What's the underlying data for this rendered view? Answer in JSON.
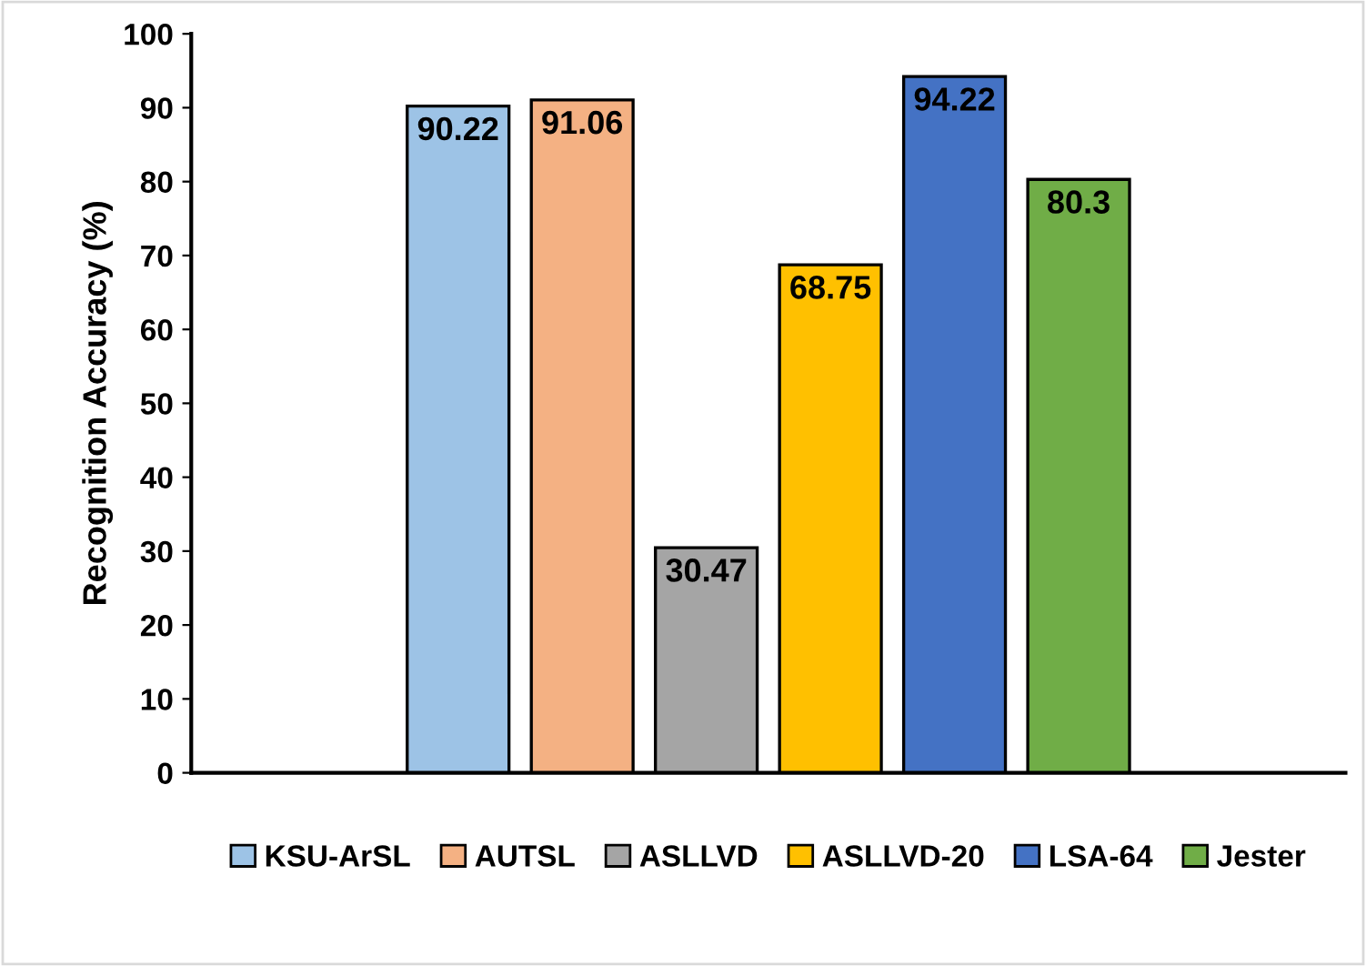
{
  "chart_data": {
    "type": "bar",
    "categories": [
      null
    ],
    "ylabel": "Recognition Accuracy (%)",
    "ylim": [
      0,
      100
    ],
    "yticks": [
      0,
      10,
      20,
      30,
      40,
      50,
      60,
      70,
      80,
      90,
      100
    ],
    "grid": false,
    "legend": "bottom",
    "data_labels": true,
    "series": [
      {
        "name": "KSU-ArSL",
        "color": "#9dc3e6",
        "values": [
          90.22
        ]
      },
      {
        "name": "AUTSL",
        "color": "#f4b183",
        "values": [
          91.06
        ]
      },
      {
        "name": "ASLLVD",
        "color": "#a5a5a5",
        "values": [
          30.47
        ]
      },
      {
        "name": "ASLLVD-20",
        "color": "#ffc000",
        "values": [
          68.75
        ]
      },
      {
        "name": "LSA-64",
        "color": "#4472c4",
        "values": [
          94.22
        ]
      },
      {
        "name": "Jester",
        "color": "#70ad47",
        "values": [
          80.3
        ]
      }
    ]
  }
}
